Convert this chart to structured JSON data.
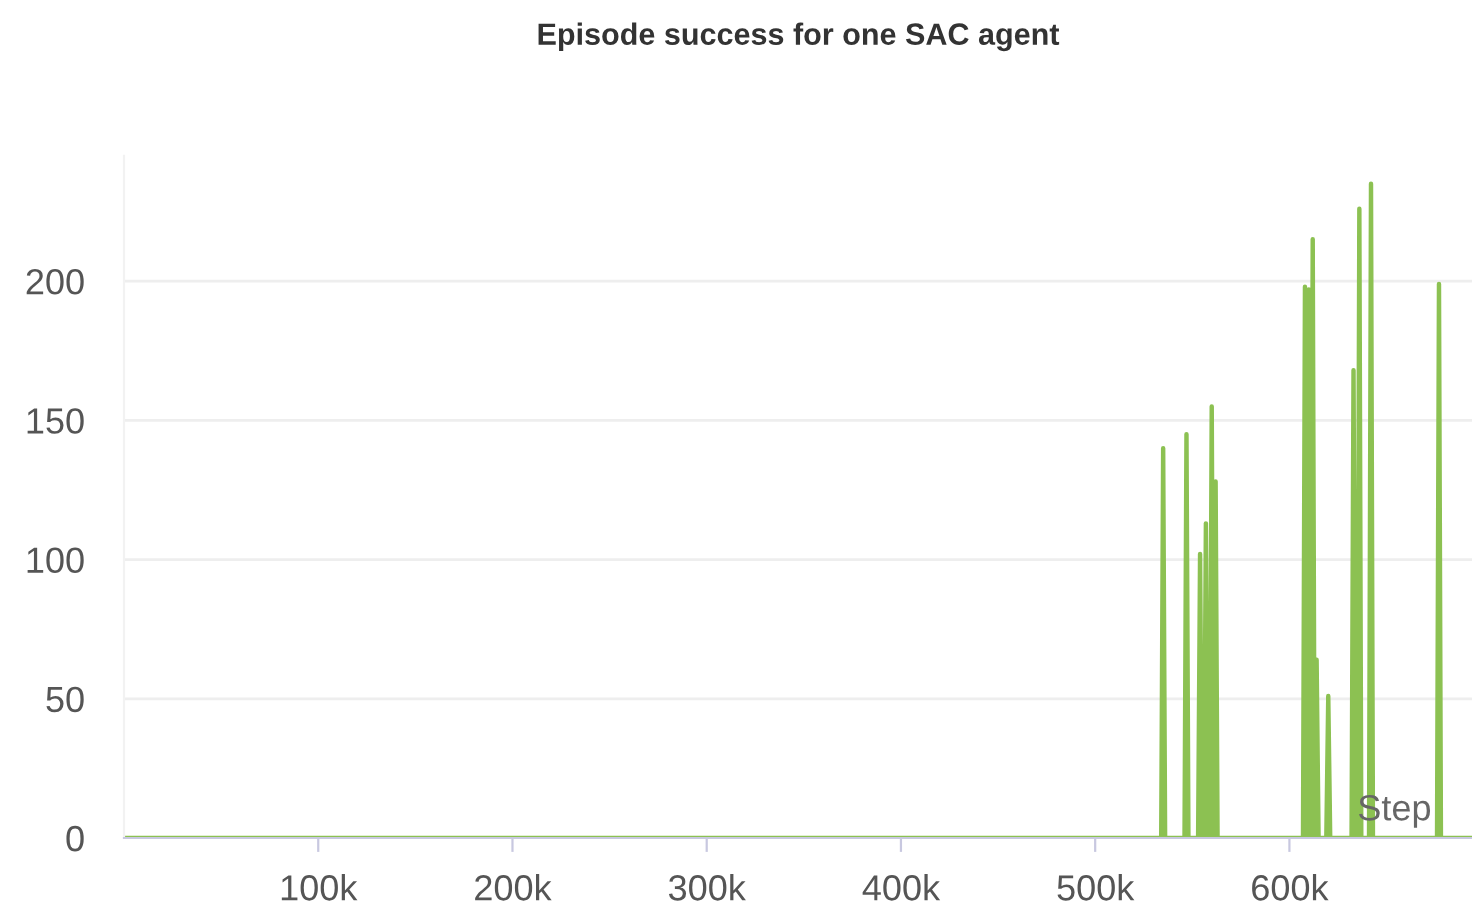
{
  "chart_data": {
    "type": "line",
    "title": "Episode success for one SAC agent",
    "xlabel": "Step",
    "series": [
      {
        "color": "#8cc152",
        "x": [
          0,
          534000,
          535000,
          536000,
          546000,
          547000,
          548000,
          553000,
          554000,
          555000,
          556000,
          557000,
          558000,
          559000,
          560000,
          561000,
          562000,
          563000,
          607000,
          608000,
          609000,
          610000,
          611000,
          612000,
          613000,
          614000,
          615000,
          619000,
          620000,
          621000,
          632000,
          633000,
          634000,
          635000,
          636000,
          637000,
          641000,
          642000,
          643000,
          676000,
          677000,
          678000,
          694000
        ],
        "values": [
          0,
          0,
          140,
          0,
          0,
          145,
          0,
          0,
          102,
          0,
          0,
          113,
          0,
          0,
          155,
          0,
          128,
          0,
          0,
          198,
          0,
          197,
          0,
          215,
          0,
          64,
          0,
          0,
          51,
          0,
          0,
          168,
          0,
          0,
          226,
          0,
          0,
          235,
          0,
          0,
          199,
          0,
          0
        ]
      }
    ],
    "xlim": [
      0,
      694000
    ],
    "ylim": [
      0,
      245
    ],
    "xticks": [
      {
        "value": 100000,
        "label": "100k"
      },
      {
        "value": 200000,
        "label": "200k"
      },
      {
        "value": 300000,
        "label": "300k"
      },
      {
        "value": 400000,
        "label": "400k"
      },
      {
        "value": 500000,
        "label": "500k"
      },
      {
        "value": 600000,
        "label": "600k"
      }
    ],
    "yticks": [
      0,
      50,
      100,
      150,
      200
    ],
    "grid": "y",
    "legend": false
  }
}
